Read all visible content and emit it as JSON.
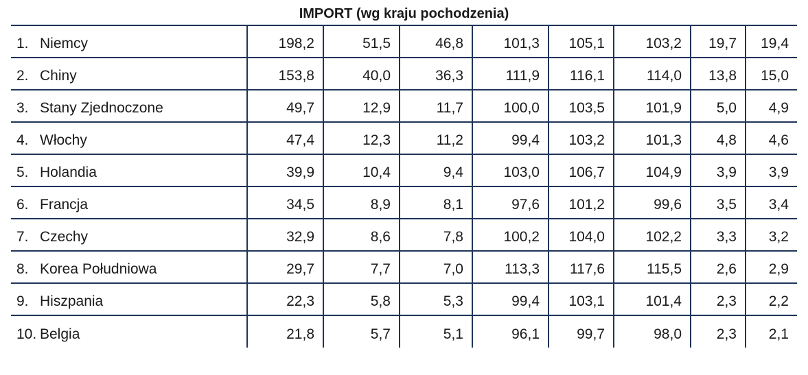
{
  "title": "IMPORT (wg kraju pochodzenia)",
  "rows": [
    {
      "rank": "1.",
      "country": "Niemcy",
      "values": [
        "198,2",
        "51,5",
        "46,8",
        "101,3",
        "105,1",
        "103,2",
        "19,7",
        "19,4"
      ]
    },
    {
      "rank": "2.",
      "country": "Chiny",
      "values": [
        "153,8",
        "40,0",
        "36,3",
        "111,9",
        "116,1",
        "114,0",
        "13,8",
        "15,0"
      ]
    },
    {
      "rank": "3.",
      "country": "Stany Zjednoczone",
      "values": [
        "49,7",
        "12,9",
        "11,7",
        "100,0",
        "103,5",
        "101,9",
        "5,0",
        "4,9"
      ]
    },
    {
      "rank": "4.",
      "country": "Włochy",
      "values": [
        "47,4",
        "12,3",
        "11,2",
        "99,4",
        "103,2",
        "101,3",
        "4,8",
        "4,6"
      ]
    },
    {
      "rank": "5.",
      "country": "Holandia",
      "values": [
        "39,9",
        "10,4",
        "9,4",
        "103,0",
        "106,7",
        "104,9",
        "3,9",
        "3,9"
      ]
    },
    {
      "rank": "6.",
      "country": "Francja",
      "values": [
        "34,5",
        "8,9",
        "8,1",
        "97,6",
        "101,2",
        "99,6",
        "3,5",
        "3,4"
      ]
    },
    {
      "rank": "7.",
      "country": "Czechy",
      "values": [
        "32,9",
        "8,6",
        "7,8",
        "100,2",
        "104,0",
        "102,2",
        "3,3",
        "3,2"
      ]
    },
    {
      "rank": "8.",
      "country": "Korea Południowa",
      "values": [
        "29,7",
        "7,7",
        "7,0",
        "113,3",
        "117,6",
        "115,5",
        "2,6",
        "2,9"
      ]
    },
    {
      "rank": "9.",
      "country": "Hiszpania",
      "values": [
        "22,3",
        "5,8",
        "5,3",
        "99,4",
        "103,1",
        "101,4",
        "2,3",
        "2,2"
      ]
    },
    {
      "rank": "10.",
      "country": "Belgia",
      "values": [
        "21,8",
        "5,7",
        "5,1",
        "96,1",
        "99,7",
        "98,0",
        "2,3",
        "2,1"
      ]
    }
  ]
}
